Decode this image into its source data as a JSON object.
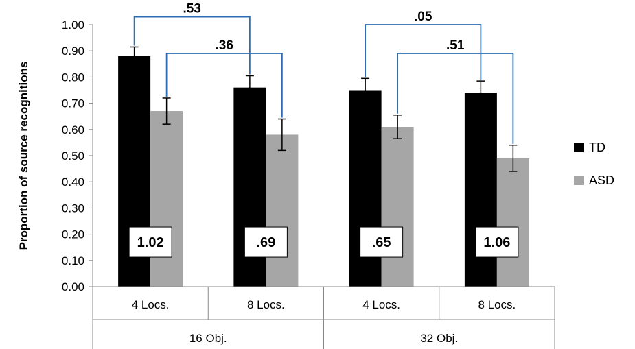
{
  "chart_data": {
    "type": "bar",
    "ylabel": "Proportion of source recognitions",
    "ylim": [
      0,
      1
    ],
    "yticks": [
      "0.00",
      "0.10",
      "0.20",
      "0.30",
      "0.40",
      "0.50",
      "0.60",
      "0.70",
      "0.80",
      "0.90",
      "1.00"
    ],
    "categories": [
      "4 Locs.",
      "8 Locs.",
      "4 Locs.",
      "8 Locs."
    ],
    "groups": [
      {
        "label": "16 Obj.",
        "span": [
          0,
          1
        ]
      },
      {
        "label": "32 Obj.",
        "span": [
          2,
          3
        ]
      }
    ],
    "series": [
      {
        "name": "TD",
        "color": "#000000",
        "values": [
          0.88,
          0.76,
          0.75,
          0.74
        ],
        "err": [
          0.035,
          0.045,
          0.045,
          0.045
        ]
      },
      {
        "name": "ASD",
        "color": "#a6a6a6",
        "values": [
          0.67,
          0.58,
          0.61,
          0.49
        ],
        "err": [
          0.05,
          0.06,
          0.045,
          0.05
        ]
      }
    ],
    "box_labels": [
      "1.02",
      ".69",
      ".65",
      "1.06"
    ],
    "comparisons": [
      {
        "label": ".53",
        "from": [
          0,
          0
        ],
        "to": [
          1,
          0
        ],
        "level": 1.03
      },
      {
        "label": ".36",
        "from": [
          0,
          1
        ],
        "to": [
          1,
          1
        ],
        "level": 0.89
      },
      {
        "label": ".05",
        "from": [
          2,
          0
        ],
        "to": [
          3,
          0
        ],
        "level": 1.0
      },
      {
        "label": ".51",
        "from": [
          2,
          1
        ],
        "to": [
          3,
          1
        ],
        "level": 0.89
      }
    ],
    "legend": {
      "position": "right",
      "entries": [
        "TD",
        "ASD"
      ]
    },
    "grid": false
  }
}
